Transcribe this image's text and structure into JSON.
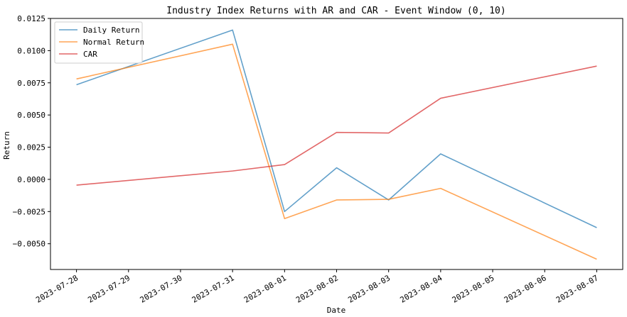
{
  "chart_data": {
    "type": "line",
    "title": "Industry Index Returns with AR and CAR - Event Window (0, 10)",
    "xlabel": "Date",
    "ylabel": "Return",
    "x_ticks": [
      "2023-07-28",
      "2023-07-29",
      "2023-07-30",
      "2023-07-31",
      "2023-08-01",
      "2023-08-02",
      "2023-08-03",
      "2023-08-04",
      "2023-08-05",
      "2023-08-06",
      "2023-08-07"
    ],
    "y_ticks": [
      "0.0125",
      "0.0100",
      "0.0075",
      "0.0050",
      "0.0025",
      "0.0000",
      "−0.0025",
      "−0.0050"
    ],
    "y_tick_values": [
      0.0125,
      0.01,
      0.0075,
      0.005,
      0.0025,
      0.0,
      -0.0025,
      -0.005
    ],
    "ylim": [
      -0.007,
      0.0125
    ],
    "xlim": [
      "2023-07-27 12:00",
      "2023-08-07 12:00"
    ],
    "grid": false,
    "legend_position": "upper-left",
    "series": [
      {
        "name": "Daily Return",
        "color": "#1f77b4",
        "x": [
          "2023-07-28",
          "2023-07-31",
          "2023-08-01",
          "2023-08-02",
          "2023-08-03",
          "2023-08-04",
          "2023-08-07"
        ],
        "values": [
          0.00735,
          0.0116,
          -0.0025,
          0.0009,
          -0.0016,
          0.00198,
          -0.00375
        ]
      },
      {
        "name": "Normal Return",
        "color": "#ff7f0e",
        "x": [
          "2023-07-28",
          "2023-07-31",
          "2023-08-01",
          "2023-08-02",
          "2023-08-03",
          "2023-08-04",
          "2023-08-07"
        ],
        "values": [
          0.0078,
          0.0105,
          -0.00305,
          -0.0016,
          -0.00155,
          -0.0007,
          -0.0062
        ]
      },
      {
        "name": "CAR",
        "color": "#d62728",
        "x": [
          "2023-07-28",
          "2023-07-31",
          "2023-08-01",
          "2023-08-02",
          "2023-08-03",
          "2023-08-04",
          "2023-08-07"
        ],
        "values": [
          -0.00045,
          0.00065,
          0.00115,
          0.00365,
          0.0036,
          0.0063,
          0.0088
        ]
      }
    ]
  }
}
